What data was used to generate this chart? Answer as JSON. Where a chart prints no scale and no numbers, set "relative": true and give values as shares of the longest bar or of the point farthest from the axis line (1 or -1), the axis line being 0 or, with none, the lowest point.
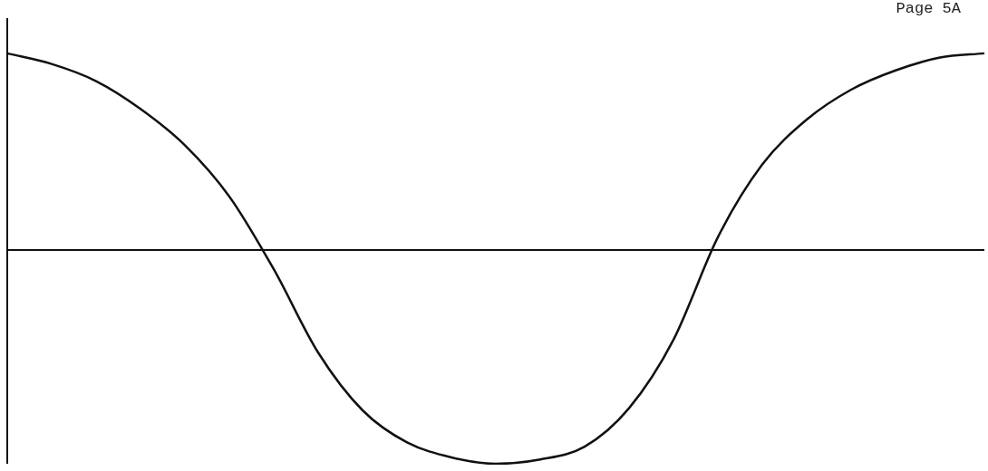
{
  "chart_data": {
    "type": "line",
    "relative": true,
    "color": "#111111",
    "marker": "none",
    "line_style": "solid",
    "legend": false,
    "annotations": [
      "Page 5A"
    ],
    "categories": [
      null,
      null,
      null,
      null,
      null,
      null,
      null,
      null,
      null,
      null,
      null,
      null,
      null,
      null,
      null,
      null,
      null,
      null,
      null,
      null,
      null,
      null,
      null
    ],
    "values": [
      0.92,
      0.87,
      0.79,
      0.66,
      0.49,
      0.25,
      -0.09,
      -0.48,
      -0.75,
      -0.9,
      -0.97,
      -1,
      -0.98,
      -0.92,
      -0.74,
      -0.42,
      0.06,
      0.4,
      0.61,
      0.75,
      0.84,
      0.9,
      0.92
    ]
  }
}
